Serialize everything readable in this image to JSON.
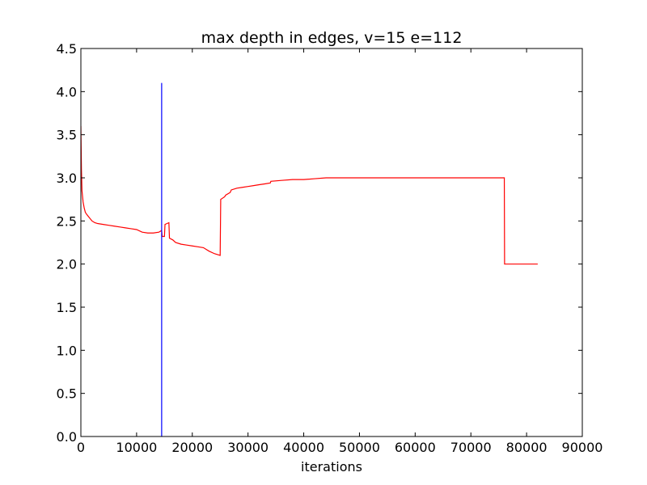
{
  "chart_data": {
    "type": "line",
    "title": "max depth in edges, v=15 e=112",
    "xlabel": "iterations",
    "ylabel": "",
    "xlim": [
      0,
      90000
    ],
    "ylim": [
      0.0,
      4.5
    ],
    "grid": false,
    "x_ticks": [
      0,
      10000,
      20000,
      30000,
      40000,
      50000,
      60000,
      70000,
      80000,
      90000
    ],
    "x_tick_labels": [
      "0",
      "10000",
      "20000",
      "30000",
      "40000",
      "50000",
      "60000",
      "70000",
      "80000",
      "90000"
    ],
    "y_ticks": [
      0.0,
      0.5,
      1.0,
      1.5,
      2.0,
      2.5,
      3.0,
      3.5,
      4.0,
      4.5
    ],
    "y_tick_labels": [
      "0.0",
      "0.5",
      "1.0",
      "1.5",
      "2.0",
      "2.5",
      "3.0",
      "3.5",
      "4.0",
      "4.5"
    ],
    "series": [
      {
        "color": "#ff0000",
        "x": [
          0,
          100,
          200,
          400,
          600,
          800,
          1000,
          1500,
          2000,
          2500,
          3000,
          4000,
          5000,
          6000,
          7000,
          8000,
          9000,
          10000,
          11000,
          12000,
          13000,
          14000,
          14500,
          14600,
          15000,
          15100,
          15800,
          15900,
          16500,
          17000,
          18000,
          19000,
          20000,
          21000,
          22000,
          23000,
          24000,
          25000,
          25100,
          25800,
          26000,
          26800,
          27000,
          28000,
          29000,
          30000,
          31000,
          32000,
          33000,
          34000,
          34100,
          36000,
          38000,
          40000,
          42000,
          44000,
          46000,
          50000,
          60000,
          70000,
          76000,
          76050,
          82000
        ],
        "y": [
          3.6,
          3.1,
          2.85,
          2.72,
          2.65,
          2.6,
          2.58,
          2.54,
          2.5,
          2.48,
          2.47,
          2.46,
          2.45,
          2.44,
          2.43,
          2.42,
          2.41,
          2.4,
          2.37,
          2.36,
          2.36,
          2.37,
          2.39,
          2.32,
          2.32,
          2.46,
          2.48,
          2.3,
          2.28,
          2.25,
          2.23,
          2.22,
          2.21,
          2.2,
          2.19,
          2.15,
          2.12,
          2.1,
          2.75,
          2.78,
          2.8,
          2.83,
          2.86,
          2.88,
          2.89,
          2.9,
          2.91,
          2.92,
          2.93,
          2.94,
          2.96,
          2.97,
          2.98,
          2.98,
          2.99,
          3.0,
          3.0,
          3.0,
          3.0,
          3.0,
          3.0,
          2.0,
          2.0
        ]
      }
    ],
    "vlines": [
      {
        "x": 14500,
        "ymin": 0.0,
        "ymax": 4.1,
        "color": "#0000ff"
      }
    ]
  }
}
